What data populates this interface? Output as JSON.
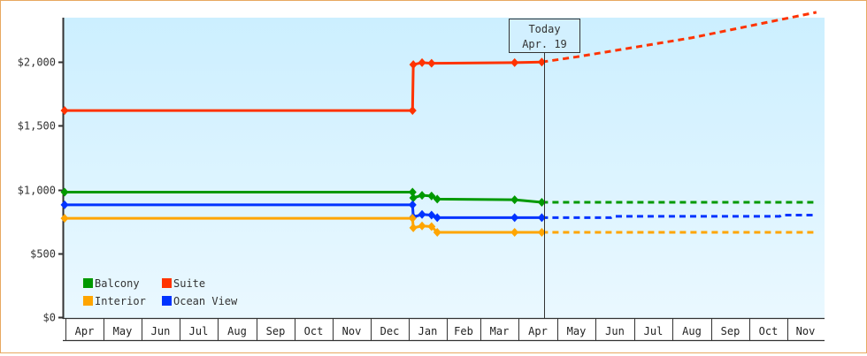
{
  "chart_data": {
    "type": "line",
    "title": "",
    "xlabel": "",
    "ylabel": "",
    "ylim": [
      0,
      2350
    ],
    "y_ticks": [
      {
        "value": 0,
        "label": "$0"
      },
      {
        "value": 500,
        "label": "$500"
      },
      {
        "value": 1000,
        "label": "$1,000"
      },
      {
        "value": 1500,
        "label": "$1,500"
      },
      {
        "value": 2000,
        "label": "$2,000"
      }
    ],
    "x_months": [
      "Apr",
      "May",
      "Jun",
      "Jul",
      "Aug",
      "Sep",
      "Oct",
      "Nov",
      "Dec",
      "Jan",
      "Feb",
      "Mar",
      "Apr",
      "May",
      "Jun",
      "Jul",
      "Aug",
      "Sep",
      "Oct",
      "Nov"
    ],
    "today_marker": {
      "line1": "Today",
      "line2": "Apr. 19"
    },
    "legend": [
      {
        "name": "Balcony",
        "color": "#009900"
      },
      {
        "name": "Suite",
        "color": "#ff3300"
      },
      {
        "name": "Interior",
        "color": "#ffa500"
      },
      {
        "name": "Ocean View",
        "color": "#0033ff"
      }
    ],
    "series": [
      {
        "name": "Suite",
        "color": "#ff3300",
        "points": [
          [
            0,
            1620
          ],
          [
            9.1,
            1620
          ],
          [
            9.12,
            1980
          ],
          [
            9.35,
            1995
          ],
          [
            9.6,
            1990
          ],
          [
            11.9,
            1995
          ],
          [
            12.6,
            2000
          ]
        ],
        "forecast": [
          [
            12.6,
            2000
          ],
          [
            13.5,
            2040
          ],
          [
            16.5,
            2190
          ],
          [
            19.8,
            2390
          ]
        ]
      },
      {
        "name": "Balcony",
        "color": "#009900",
        "points": [
          [
            0,
            980
          ],
          [
            9.1,
            980
          ],
          [
            9.12,
            935
          ],
          [
            9.35,
            955
          ],
          [
            9.6,
            950
          ],
          [
            9.75,
            925
          ],
          [
            11.9,
            920
          ],
          [
            12.6,
            900
          ]
        ],
        "forecast": [
          [
            12.6,
            900
          ],
          [
            19.8,
            900
          ]
        ]
      },
      {
        "name": "Ocean View",
        "color": "#0033ff",
        "points": [
          [
            0,
            880
          ],
          [
            9.1,
            880
          ],
          [
            9.12,
            785
          ],
          [
            9.35,
            805
          ],
          [
            9.6,
            800
          ],
          [
            9.75,
            780
          ],
          [
            11.9,
            780
          ],
          [
            12.6,
            780
          ]
        ],
        "forecast": [
          [
            12.6,
            780
          ],
          [
            14.4,
            780
          ],
          [
            14.45,
            790
          ],
          [
            18.8,
            790
          ],
          [
            18.85,
            800
          ],
          [
            19.8,
            800
          ]
        ]
      },
      {
        "name": "Interior",
        "color": "#ffa500",
        "points": [
          [
            0,
            775
          ],
          [
            9.1,
            775
          ],
          [
            9.12,
            700
          ],
          [
            9.35,
            715
          ],
          [
            9.6,
            710
          ],
          [
            9.75,
            665
          ],
          [
            11.9,
            665
          ],
          [
            12.6,
            665
          ]
        ],
        "forecast": [
          [
            12.6,
            665
          ],
          [
            19.8,
            665
          ]
        ]
      }
    ]
  }
}
